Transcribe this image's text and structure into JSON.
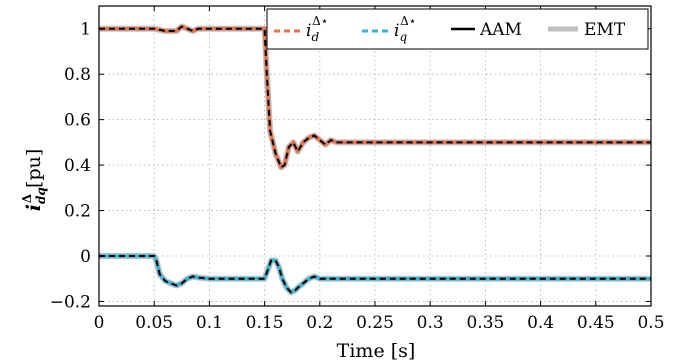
{
  "chart_data": {
    "type": "line",
    "title": "",
    "xlabel": "Time [s]",
    "ylabel": {
      "base": "i",
      "sup": "Δ",
      "sub": "dq",
      "unit": "[pu]"
    },
    "xlim": [
      0,
      0.5
    ],
    "ylim": [
      -0.22,
      1.1
    ],
    "xticks": [
      0,
      0.05,
      0.1,
      0.15,
      0.2,
      0.25,
      0.3,
      0.35,
      0.4,
      0.45,
      0.5
    ],
    "xtick_labels": [
      "0",
      "0.05",
      "0.1",
      "0.15",
      "0.2",
      "0.25",
      "0.3",
      "0.35",
      "0.4",
      "0.45",
      "0.5"
    ],
    "yticks": [
      -0.2,
      0,
      0.2,
      0.4,
      0.6,
      0.8,
      1
    ],
    "ytick_labels": [
      "−0.2",
      "0",
      "0.2",
      "0.4",
      "0.6",
      "0.8",
      "1"
    ],
    "grid": true,
    "legend_position": "top-right",
    "legend": [
      {
        "key": "id",
        "base": "i",
        "sub": "d",
        "sup": "Δ⋆",
        "style": "dashed",
        "color": "#e8734a"
      },
      {
        "key": "iq",
        "base": "i",
        "sub": "q",
        "sup": "Δ⋆",
        "style": "dashed",
        "color": "#35b5d6"
      },
      {
        "key": "aam",
        "label": "AAM",
        "style": "solid",
        "color": "#000000"
      },
      {
        "key": "emt",
        "label": "EMT",
        "style": "solid",
        "color": "#c0c0c0"
      }
    ],
    "series": [
      {
        "key": "d",
        "x": [
          0,
          0.02,
          0.05,
          0.06,
          0.07,
          0.075,
          0.08,
          0.085,
          0.09,
          0.1,
          0.12,
          0.15,
          0.152,
          0.155,
          0.16,
          0.165,
          0.168,
          0.172,
          0.176,
          0.18,
          0.185,
          0.19,
          0.195,
          0.2,
          0.205,
          0.21,
          0.215,
          0.22,
          0.23,
          0.25,
          0.3,
          0.4,
          0.5
        ],
        "y": [
          1,
          1,
          1,
          0.99,
          0.99,
          1.01,
          1.0,
          0.99,
          1.0,
          1,
          1,
          1,
          0.8,
          0.55,
          0.45,
          0.39,
          0.4,
          0.48,
          0.5,
          0.46,
          0.5,
          0.52,
          0.53,
          0.51,
          0.49,
          0.51,
          0.5,
          0.5,
          0.5,
          0.5,
          0.5,
          0.5,
          0.5
        ]
      },
      {
        "key": "q",
        "x": [
          0,
          0.02,
          0.05,
          0.052,
          0.055,
          0.06,
          0.065,
          0.07,
          0.075,
          0.08,
          0.085,
          0.09,
          0.1,
          0.12,
          0.15,
          0.153,
          0.156,
          0.16,
          0.163,
          0.166,
          0.17,
          0.174,
          0.178,
          0.18,
          0.185,
          0.19,
          0.195,
          0.2,
          0.21,
          0.22,
          0.25,
          0.3,
          0.4,
          0.5
        ],
        "y": [
          0,
          0,
          0,
          -0.02,
          -0.08,
          -0.11,
          -0.12,
          -0.13,
          -0.12,
          -0.1,
          -0.09,
          -0.095,
          -0.1,
          -0.1,
          -0.1,
          -0.06,
          -0.02,
          -0.02,
          -0.05,
          -0.1,
          -0.14,
          -0.16,
          -0.15,
          -0.14,
          -0.12,
          -0.1,
          -0.09,
          -0.1,
          -0.1,
          -0.1,
          -0.1,
          -0.1,
          -0.1,
          -0.1
        ]
      }
    ]
  }
}
